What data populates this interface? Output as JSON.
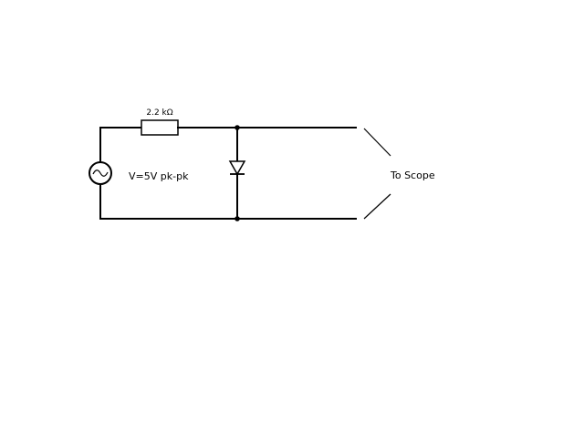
{
  "diagram": {
    "resistor_label": "2.2 kΩ",
    "source_label": "V=5V pk-pk",
    "output_label": "To Scope"
  },
  "colors": {
    "line": "#000000",
    "background": "#ffffff"
  },
  "icons": {
    "source": "ac-source-icon",
    "resistor": "resistor-icon",
    "diode": "diode-icon"
  }
}
